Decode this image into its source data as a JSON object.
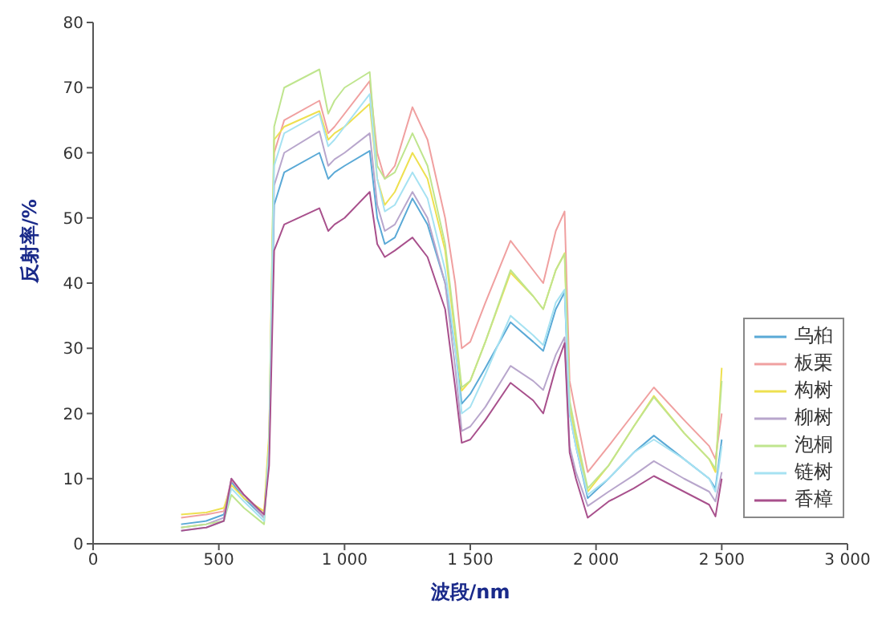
{
  "chart_data": {
    "type": "line",
    "xlabel": "波段/nm",
    "ylabel": "反射率/%",
    "x": [
      350,
      450,
      520,
      550,
      600,
      680,
      700,
      720,
      760,
      900,
      935,
      960,
      1000,
      1100,
      1130,
      1160,
      1200,
      1270,
      1330,
      1400,
      1440,
      1466,
      1500,
      1560,
      1660,
      1750,
      1790,
      1840,
      1875,
      1895,
      1920,
      1967,
      2050,
      2150,
      2230,
      2350,
      2450,
      2475,
      2500
    ],
    "series": [
      {
        "name": "乌桕",
        "color": "#5aa9d6",
        "values": [
          3,
          3.5,
          4.5,
          9.5,
          7,
          4,
          15,
          52,
          57,
          60,
          56,
          57,
          58,
          60.3,
          50,
          46,
          47,
          53,
          49,
          40,
          30,
          21.5,
          23,
          27,
          34,
          31,
          29.6,
          36,
          38.6,
          20,
          15,
          7,
          10,
          14,
          16.6,
          13,
          10,
          8.5,
          16
        ]
      },
      {
        "name": "板栗",
        "color": "#f0a0a0",
        "values": [
          4,
          4.5,
          5,
          9.8,
          7.5,
          4.5,
          16,
          60,
          65,
          68,
          63,
          64,
          66,
          71,
          60,
          56,
          58,
          67,
          62,
          50,
          40,
          30,
          31,
          37,
          46.5,
          42,
          40,
          48,
          51,
          25,
          20,
          11,
          15,
          20,
          24,
          19,
          15,
          13,
          20
        ]
      },
      {
        "name": "构树",
        "color": "#eee050",
        "values": [
          4.5,
          4.8,
          5.5,
          9,
          7,
          5,
          17,
          62,
          64,
          66.4,
          62,
          63,
          64,
          67.5,
          56,
          52,
          54,
          60,
          56,
          45,
          32,
          23.5,
          25,
          31,
          41.6,
          38,
          36,
          42,
          44.6,
          21,
          16,
          8,
          12,
          18,
          22.7,
          17,
          13,
          11,
          27
        ]
      },
      {
        "name": "柳树",
        "color": "#b8a6cc",
        "values": [
          2.5,
          3,
          4,
          10,
          7.5,
          4,
          14,
          55,
          60,
          63.3,
          58,
          59,
          60,
          63,
          52,
          48,
          49,
          54,
          50,
          40,
          27,
          17.3,
          18,
          21,
          27.3,
          25,
          23.6,
          29,
          31.7,
          15,
          11,
          5.8,
          8,
          10.5,
          12.7,
          10,
          8,
          6.5,
          11
        ]
      },
      {
        "name": "泡桐",
        "color": "#bfe58e",
        "values": [
          2.5,
          3,
          3.5,
          7.5,
          5.5,
          3,
          15,
          64,
          70,
          72.8,
          66,
          68,
          70,
          72.4,
          58,
          56,
          57,
          63,
          58,
          46,
          33,
          24,
          25,
          31,
          42,
          38,
          36,
          42,
          44.5,
          22,
          17,
          8.5,
          12,
          18,
          22.5,
          17,
          13,
          11.5,
          25
        ]
      },
      {
        "name": "链树",
        "color": "#a6e2f2",
        "values": [
          2,
          2.5,
          3.5,
          8.5,
          6.5,
          3.5,
          15,
          58,
          63,
          66,
          61,
          62,
          64,
          69,
          56,
          51,
          52,
          57,
          53,
          42,
          30,
          20,
          21,
          26,
          35,
          32,
          30.5,
          37,
          39,
          20,
          15,
          7.5,
          10,
          14,
          16,
          13,
          10,
          8,
          15
        ]
      },
      {
        "name": "香樟",
        "color": "#a8508c",
        "values": [
          2,
          2.5,
          3.5,
          10,
          7.5,
          4.5,
          12,
          45,
          49,
          51.5,
          48,
          49,
          50,
          54,
          46,
          44,
          45,
          47,
          44,
          36,
          24,
          15.5,
          16,
          19,
          24.7,
          22,
          20,
          27,
          30.8,
          14,
          10,
          4,
          6.5,
          8.5,
          10.4,
          8,
          6,
          4.2,
          10
        ]
      }
    ],
    "xlim": [
      0,
      3000
    ],
    "xticks": [
      0,
      500,
      {
        "value": 1000,
        "label": "1 000"
      },
      {
        "value": 1500,
        "label": "1 500"
      },
      {
        "value": 2000,
        "label": "2 000"
      },
      {
        "value": 2500,
        "label": "2 500"
      },
      {
        "value": 3000,
        "label": "3 000"
      }
    ],
    "ylim": [
      0,
      80
    ],
    "yticks": [
      0,
      10,
      20,
      30,
      40,
      50,
      60,
      70,
      80
    ],
    "grid": false,
    "legend": "bottom right",
    "marker": "none",
    "line_style": "solid"
  }
}
